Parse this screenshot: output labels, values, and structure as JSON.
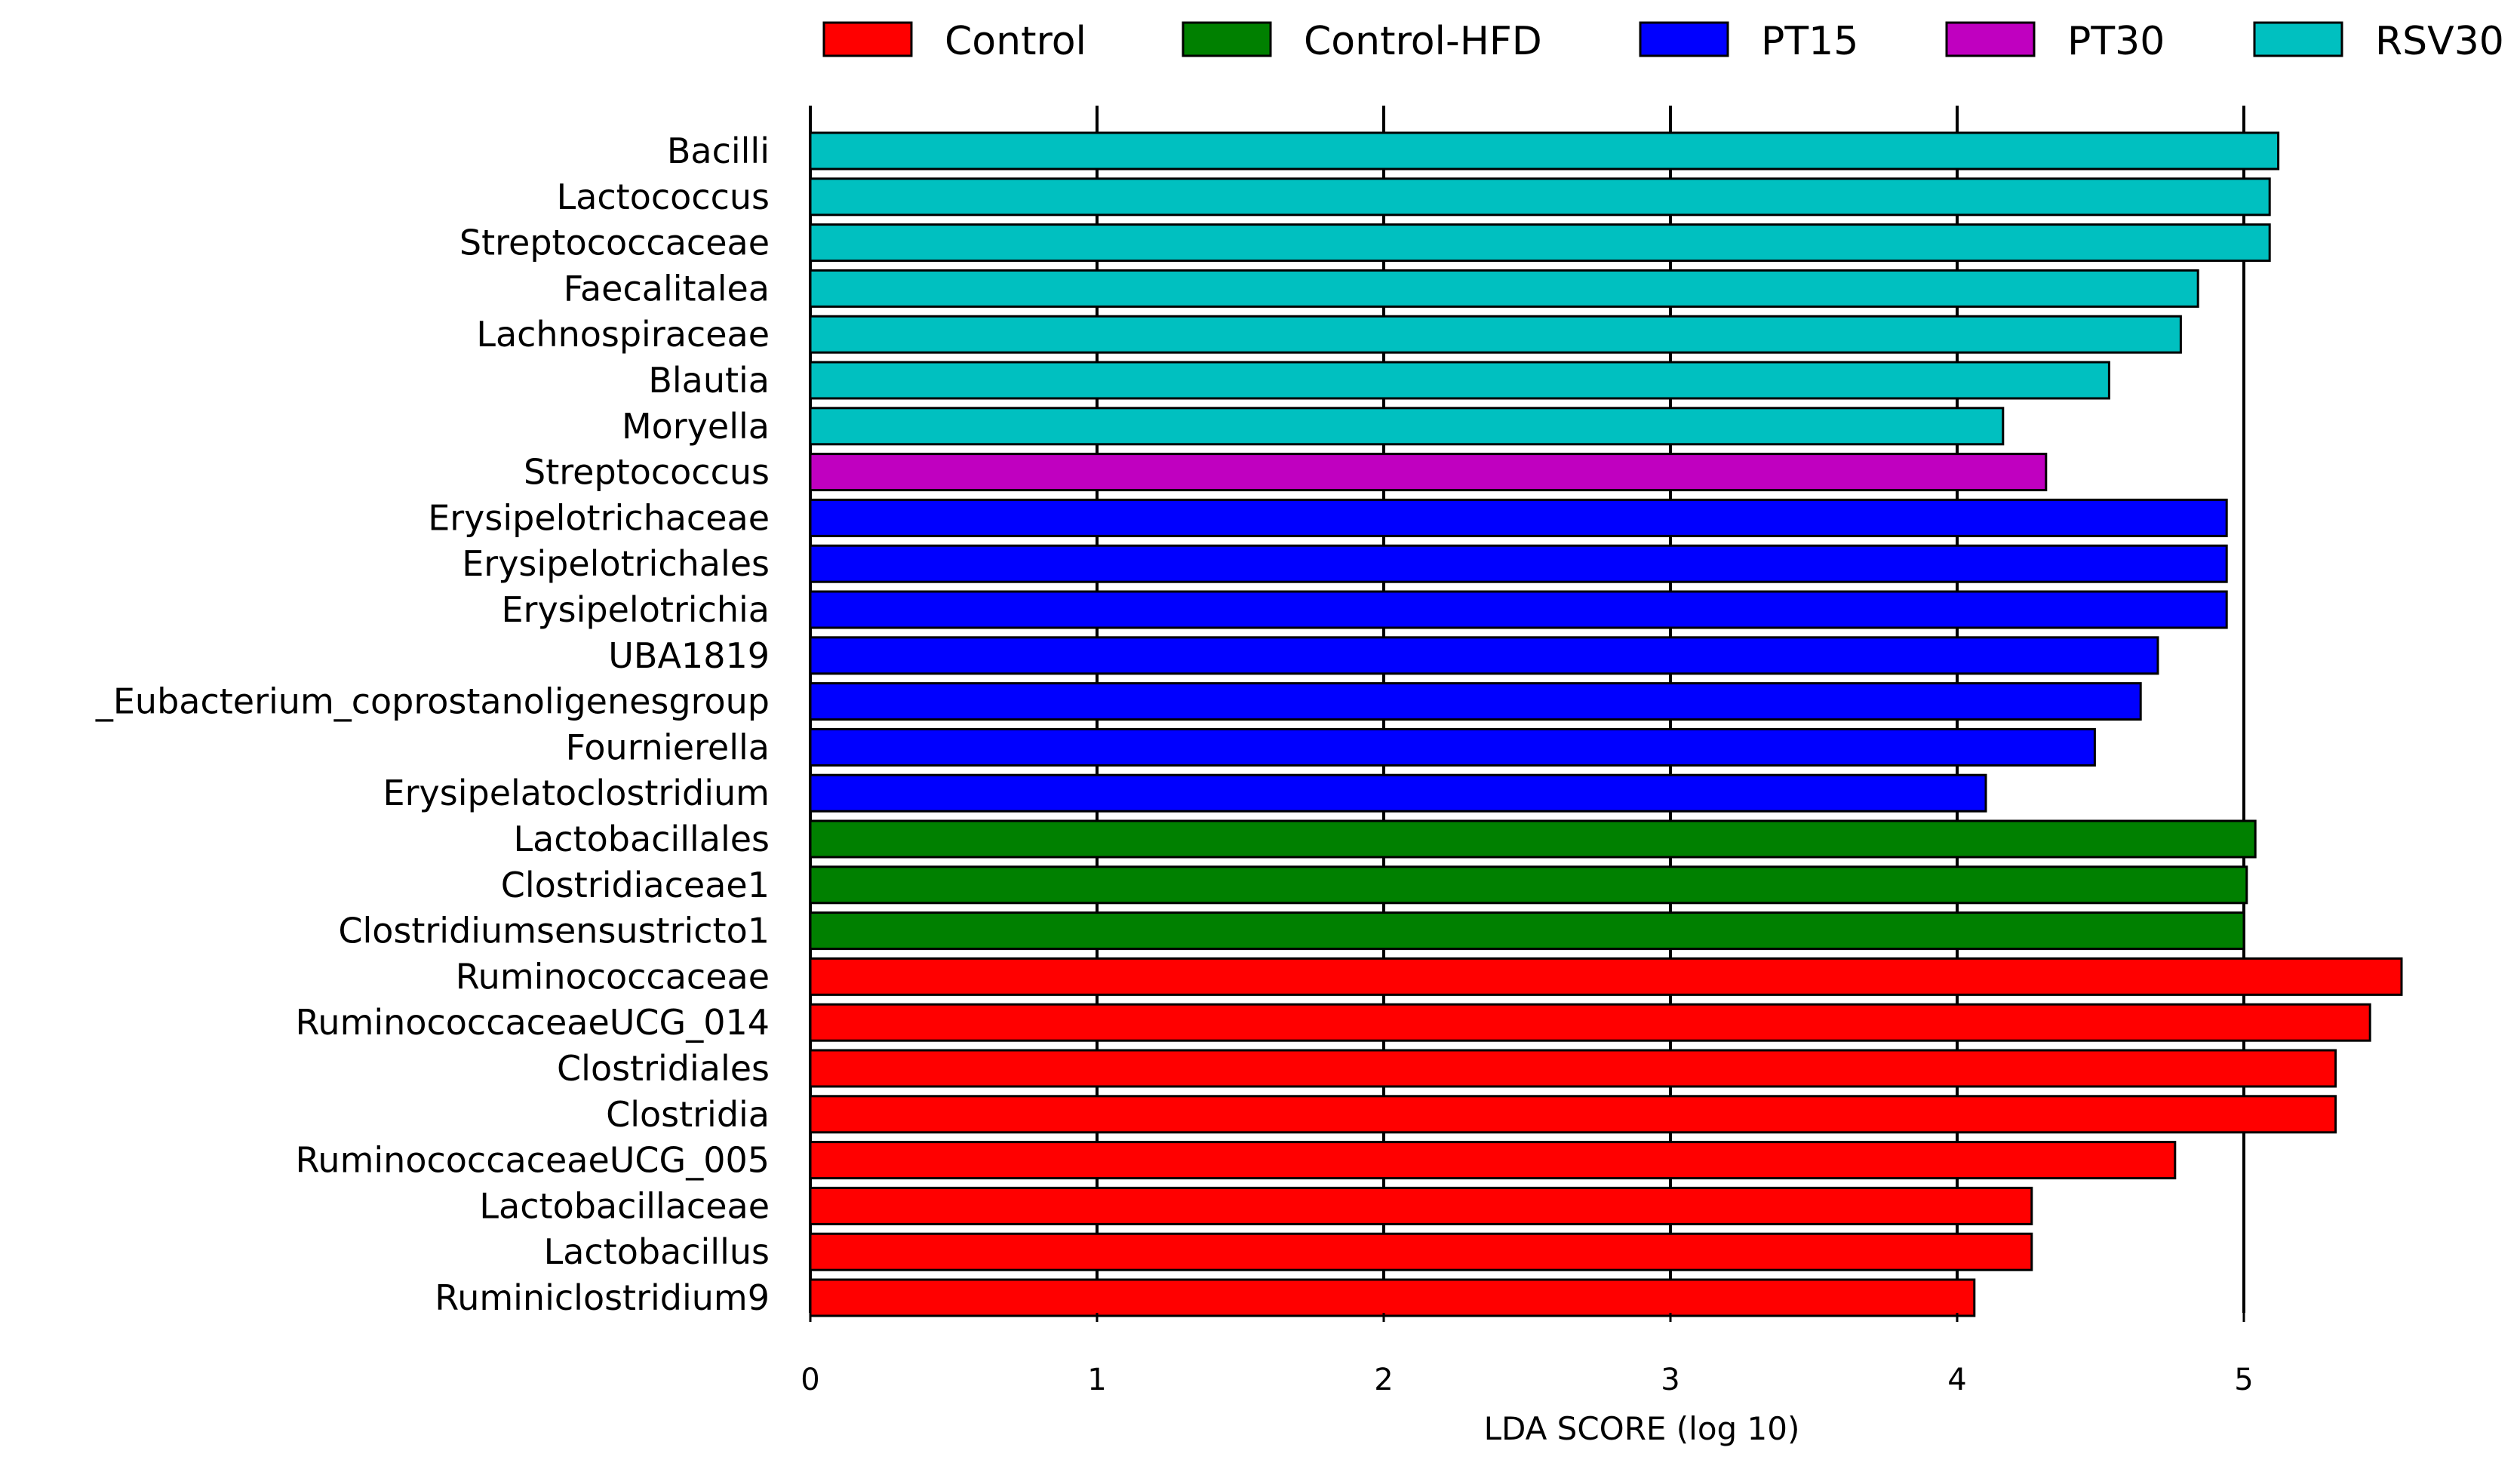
{
  "chart_data": {
    "type": "bar",
    "orientation": "horizontal",
    "title": "",
    "xlabel": "LDA SCORE (log 10)",
    "ylabel": "",
    "xlim": [
      0,
      5.6
    ],
    "xticks": [
      0,
      1,
      2,
      3,
      4,
      5
    ],
    "grid": "vertical",
    "legend_position": "top",
    "legend": [
      {
        "name": "Control",
        "color": "#ff0000"
      },
      {
        "name": "Control-HFD",
        "color": "#008000"
      },
      {
        "name": "PT15",
        "color": "#0000ff"
      },
      {
        "name": "PT30",
        "color": "#c000c0"
      },
      {
        "name": "RSV30",
        "color": "#00c0c0"
      }
    ],
    "bars": [
      {
        "label": "Bacilli",
        "value": 5.12,
        "group": "RSV30"
      },
      {
        "label": "Lactococcus",
        "value": 5.09,
        "group": "RSV30"
      },
      {
        "label": "Streptococcaceae",
        "value": 5.09,
        "group": "RSV30"
      },
      {
        "label": "Faecalitalea",
        "value": 4.84,
        "group": "RSV30"
      },
      {
        "label": "Lachnospiraceae",
        "value": 4.78,
        "group": "RSV30"
      },
      {
        "label": "Blautia",
        "value": 4.53,
        "group": "RSV30"
      },
      {
        "label": "Moryella",
        "value": 4.16,
        "group": "RSV30"
      },
      {
        "label": "Streptococcus",
        "value": 4.31,
        "group": "PT30"
      },
      {
        "label": "Erysipelotrichaceae",
        "value": 4.94,
        "group": "PT15"
      },
      {
        "label": "Erysipelotrichales",
        "value": 4.94,
        "group": "PT15"
      },
      {
        "label": "Erysipelotrichia",
        "value": 4.94,
        "group": "PT15"
      },
      {
        "label": "UBA1819",
        "value": 4.7,
        "group": "PT15"
      },
      {
        "label": "_Eubacterium_coprostanoligenesgroup",
        "value": 4.64,
        "group": "PT15"
      },
      {
        "label": "Fournierella",
        "value": 4.48,
        "group": "PT15"
      },
      {
        "label": "Erysipelatoclostridium",
        "value": 4.1,
        "group": "PT15"
      },
      {
        "label": "Lactobacillales",
        "value": 5.04,
        "group": "Control-HFD"
      },
      {
        "label": "Clostridiaceae1",
        "value": 5.01,
        "group": "Control-HFD"
      },
      {
        "label": "Clostridiumsensustricto1",
        "value": 5.0,
        "group": "Control-HFD"
      },
      {
        "label": "Ruminococcaceae",
        "value": 5.55,
        "group": "Control"
      },
      {
        "label": "RuminococcaceaeUCG_014",
        "value": 5.44,
        "group": "Control"
      },
      {
        "label": "Clostridiales",
        "value": 5.32,
        "group": "Control"
      },
      {
        "label": "Clostridia",
        "value": 5.32,
        "group": "Control"
      },
      {
        "label": "RuminococcaceaeUCG_005",
        "value": 4.76,
        "group": "Control"
      },
      {
        "label": "Lactobacillaceae",
        "value": 4.26,
        "group": "Control"
      },
      {
        "label": "Lactobacillus",
        "value": 4.26,
        "group": "Control"
      },
      {
        "label": "Ruminiclostridium9",
        "value": 4.06,
        "group": "Control"
      }
    ]
  }
}
